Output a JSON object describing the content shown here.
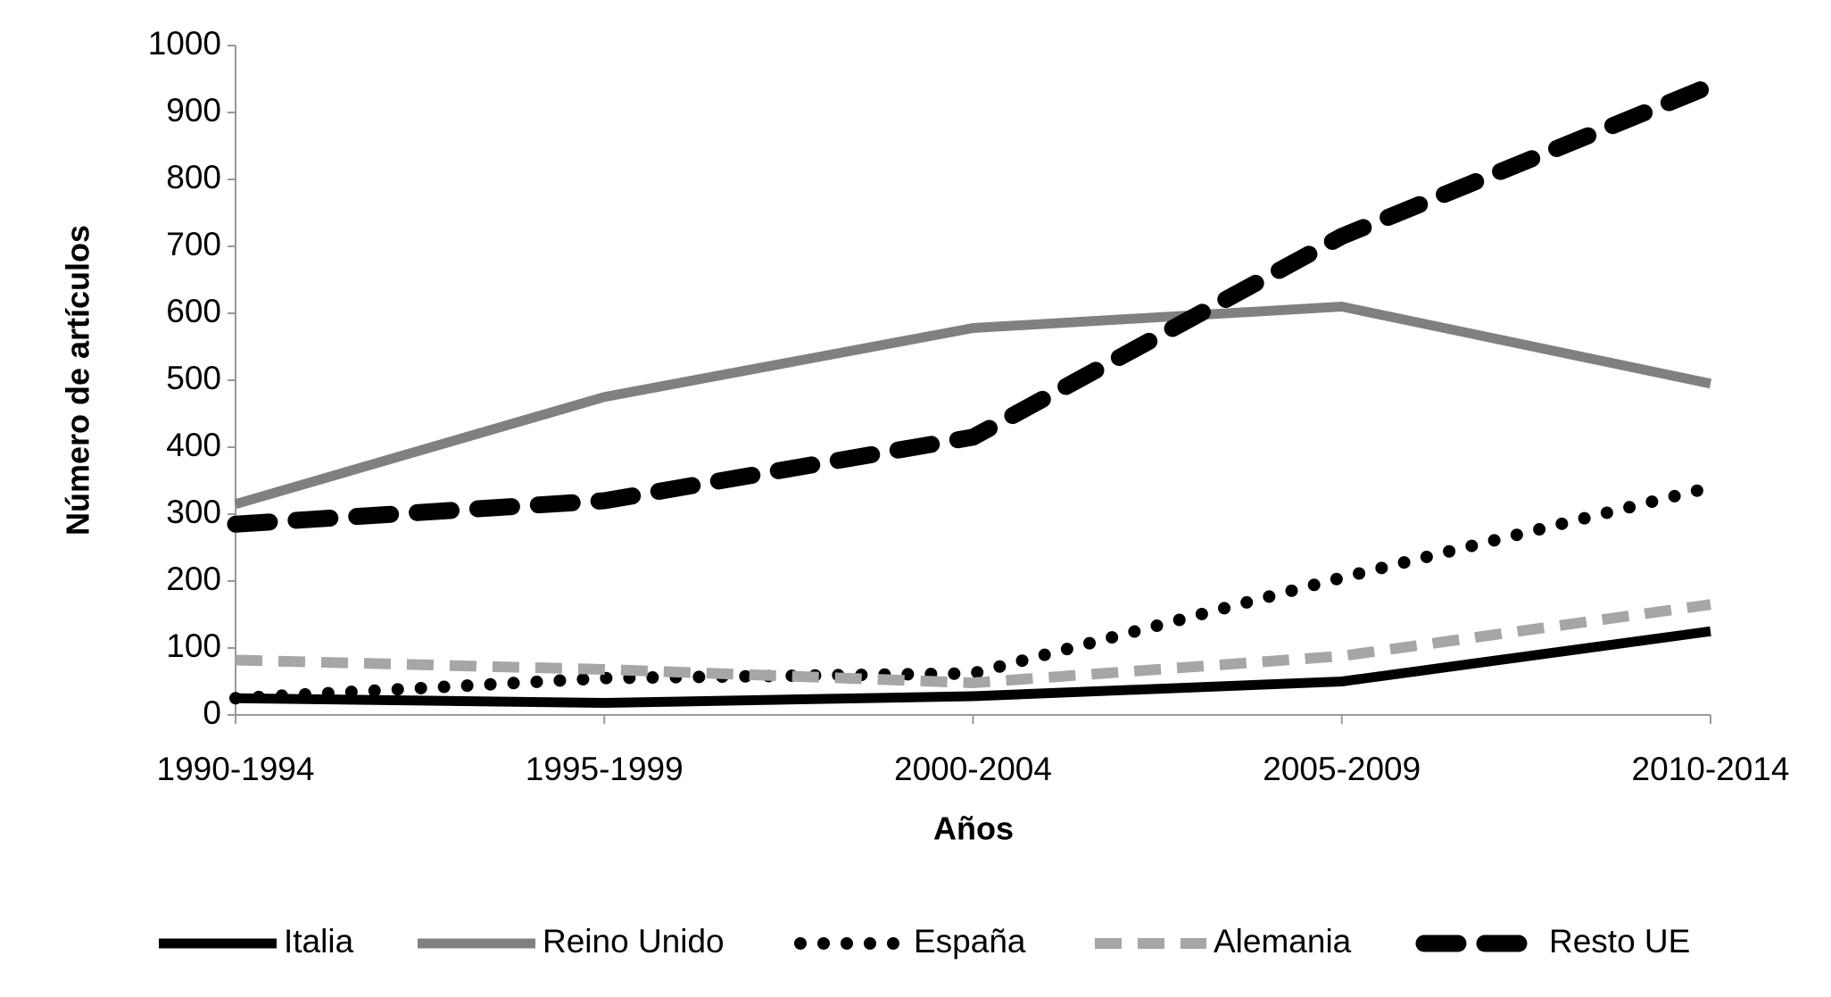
{
  "chart_data": {
    "type": "line",
    "categories": [
      "1990-1994",
      "1995-1999",
      "2000-2004",
      "2005-2009",
      "2010-2014"
    ],
    "series": [
      {
        "name": "Italia",
        "color": "#000000",
        "values": [
          25,
          18,
          28,
          50,
          125
        ]
      },
      {
        "name": "Reino Unido",
        "color": "#808080",
        "values": [
          315,
          475,
          578,
          610,
          495
        ]
      },
      {
        "name": "España",
        "color": "#000000",
        "values": [
          25,
          55,
          62,
          205,
          340
        ]
      },
      {
        "name": "Alemania",
        "color": "#a6a6a6",
        "values": [
          82,
          68,
          48,
          88,
          165
        ]
      },
      {
        "name": "Resto UE",
        "color": "#000000",
        "values": [
          285,
          320,
          415,
          715,
          940
        ]
      }
    ],
    "xlabel": "Años",
    "ylabel": "Número de artículos",
    "ylim": [
      0,
      1000
    ],
    "yticks": [
      0,
      100,
      200,
      300,
      400,
      500,
      600,
      700,
      800,
      900,
      1000
    ],
    "grid": false,
    "legend": "bottom"
  }
}
